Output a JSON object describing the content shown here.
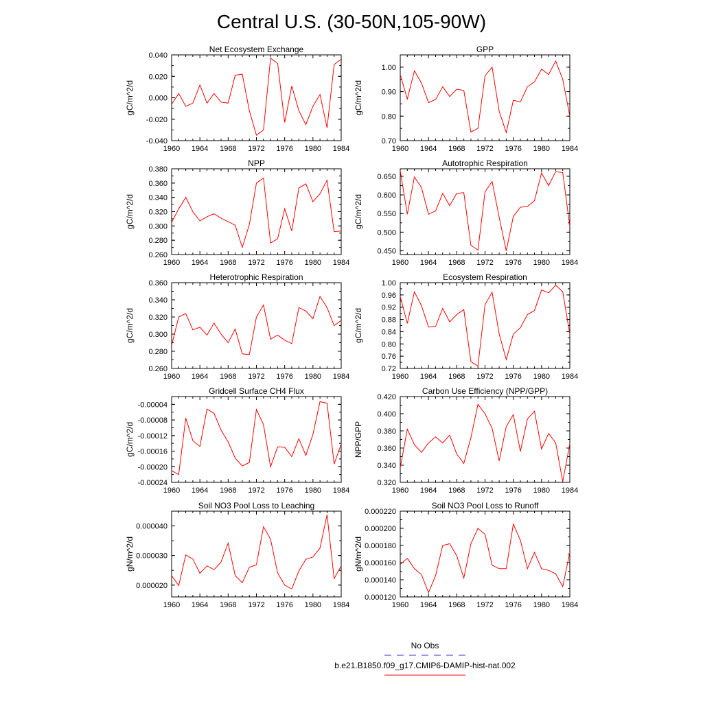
{
  "page_title": "Central U.S. (30-50N,105-90W)",
  "colors": {
    "model_line": "#ff0000",
    "obs_line": "#3333cc",
    "frame": "#000000"
  },
  "x_ticks": [
    "1960",
    "1964",
    "1968",
    "1972",
    "1976",
    "1980",
    "1984"
  ],
  "legend": {
    "obs_label": "No Obs",
    "model_label": "b.e21.B1850.f09_g17.CMIP6-DAMIP-hist-nat.002",
    "obs_style": "dashed blue",
    "model_style": "solid red"
  },
  "chart_data": [
    {
      "type": "line",
      "title": "Net Ecosystem Exchange",
      "ylabel": "gC/m^2/d",
      "xlim": [
        1960,
        1984
      ],
      "ylim": [
        -0.04,
        0.04
      ],
      "yticks": [
        -0.04,
        -0.02,
        0.0,
        0.02,
        0.04
      ],
      "ytick_labels": [
        "-0.040",
        "-0.020",
        "0.000",
        "0.020",
        "0.040"
      ],
      "series": [
        {
          "name": "b.e21.B1850.f09_g17.CMIP6-DAMIP-hist-nat.002",
          "x": [
            1960,
            1961,
            1962,
            1963,
            1964,
            1965,
            1966,
            1967,
            1968,
            1969,
            1970,
            1971,
            1972,
            1973,
            1974,
            1975,
            1976,
            1977,
            1978,
            1979,
            1980,
            1981,
            1982,
            1983,
            1984
          ],
          "y": [
            -0.006,
            0.004,
            -0.008,
            -0.005,
            0.012,
            -0.005,
            0.004,
            -0.004,
            -0.005,
            0.021,
            0.022,
            -0.012,
            -0.035,
            -0.03,
            0.037,
            0.032,
            -0.023,
            0.011,
            -0.012,
            -0.025,
            -0.008,
            0.003,
            -0.028,
            0.031,
            0.036
          ]
        }
      ]
    },
    {
      "type": "line",
      "title": "GPP",
      "ylabel": "gC/m^2/d",
      "xlim": [
        1960,
        1984
      ],
      "ylim": [
        0.7,
        1.05
      ],
      "yticks": [
        0.7,
        0.8,
        0.9,
        1.0
      ],
      "ytick_labels": [
        "0.70",
        "0.80",
        "0.90",
        "1.00"
      ],
      "series": [
        {
          "name": "b.e21.B1850.f09_g17.CMIP6-DAMIP-hist-nat.002",
          "x": [
            1960,
            1961,
            1962,
            1963,
            1964,
            1965,
            1966,
            1967,
            1968,
            1969,
            1970,
            1971,
            1972,
            1973,
            1974,
            1975,
            1976,
            1977,
            1978,
            1979,
            1980,
            1981,
            1982,
            1983,
            1984
          ],
          "y": [
            0.97,
            0.87,
            0.985,
            0.935,
            0.855,
            0.868,
            0.92,
            0.88,
            0.91,
            0.905,
            0.735,
            0.75,
            0.965,
            1.0,
            0.82,
            0.733,
            0.865,
            0.858,
            0.92,
            0.94,
            0.992,
            0.97,
            1.025,
            0.95,
            0.8
          ]
        }
      ]
    },
    {
      "type": "line",
      "title": "NPP",
      "ylabel": "gC/m^2/d",
      "xlim": [
        1960,
        1984
      ],
      "ylim": [
        0.26,
        0.38
      ],
      "yticks": [
        0.26,
        0.28,
        0.3,
        0.32,
        0.34,
        0.36,
        0.38
      ],
      "ytick_labels": [
        "0.260",
        "0.280",
        "0.300",
        "0.320",
        "0.340",
        "0.360",
        "0.380"
      ],
      "series": [
        {
          "name": "b.e21.B1850.f09_g17.CMIP6-DAMIP-hist-nat.002",
          "x": [
            1960,
            1961,
            1962,
            1963,
            1964,
            1965,
            1966,
            1967,
            1968,
            1969,
            1970,
            1971,
            1972,
            1973,
            1974,
            1975,
            1976,
            1977,
            1978,
            1979,
            1980,
            1981,
            1982,
            1983,
            1984
          ],
          "y": [
            0.305,
            0.324,
            0.34,
            0.32,
            0.307,
            0.313,
            0.317,
            0.311,
            0.306,
            0.301,
            0.27,
            0.302,
            0.36,
            0.367,
            0.276,
            0.282,
            0.324,
            0.293,
            0.353,
            0.359,
            0.334,
            0.345,
            0.364,
            0.292,
            0.293
          ]
        }
      ]
    },
    {
      "type": "line",
      "title": "Autotrophic Respiration",
      "ylabel": "gC/m^2/d",
      "xlim": [
        1960,
        1984
      ],
      "ylim": [
        0.44,
        0.67
      ],
      "yticks": [
        0.45,
        0.5,
        0.55,
        0.6,
        0.65
      ],
      "ytick_labels": [
        "0.450",
        "0.500",
        "0.550",
        "0.600",
        "0.650"
      ],
      "series": [
        {
          "name": "b.e21.B1850.f09_g17.CMIP6-DAMIP-hist-nat.002",
          "x": [
            1960,
            1961,
            1962,
            1963,
            1964,
            1965,
            1966,
            1967,
            1968,
            1969,
            1970,
            1971,
            1972,
            1973,
            1974,
            1975,
            1976,
            1977,
            1978,
            1979,
            1980,
            1981,
            1982,
            1983,
            1984
          ],
          "y": [
            0.665,
            0.548,
            0.648,
            0.62,
            0.548,
            0.557,
            0.604,
            0.571,
            0.604,
            0.606,
            0.465,
            0.452,
            0.608,
            0.636,
            0.54,
            0.45,
            0.542,
            0.567,
            0.569,
            0.584,
            0.659,
            0.625,
            0.662,
            0.66,
            0.515
          ]
        }
      ]
    },
    {
      "type": "line",
      "title": "Heterotrophic Respiration",
      "ylabel": "gC/m^2/d",
      "xlim": [
        1960,
        1984
      ],
      "ylim": [
        0.26,
        0.36
      ],
      "yticks": [
        0.26,
        0.28,
        0.3,
        0.32,
        0.34,
        0.36
      ],
      "ytick_labels": [
        "0.260",
        "0.280",
        "0.300",
        "0.320",
        "0.340",
        "0.360"
      ],
      "series": [
        {
          "name": "b.e21.B1850.f09_g17.CMIP6-DAMIP-hist-nat.002",
          "x": [
            1960,
            1961,
            1962,
            1963,
            1964,
            1965,
            1966,
            1967,
            1968,
            1969,
            1970,
            1971,
            1972,
            1973,
            1974,
            1975,
            1976,
            1977,
            1978,
            1979,
            1980,
            1981,
            1982,
            1983,
            1984
          ],
          "y": [
            0.287,
            0.32,
            0.324,
            0.305,
            0.308,
            0.299,
            0.313,
            0.3,
            0.29,
            0.306,
            0.277,
            0.276,
            0.32,
            0.334,
            0.294,
            0.299,
            0.293,
            0.289,
            0.331,
            0.327,
            0.318,
            0.344,
            0.331,
            0.31,
            0.316
          ]
        }
      ]
    },
    {
      "type": "line",
      "title": "Ecosystem Respiration",
      "ylabel": "gC/m^2/d",
      "xlim": [
        1960,
        1984
      ],
      "ylim": [
        0.72,
        1.0
      ],
      "yticks": [
        0.72,
        0.76,
        0.8,
        0.84,
        0.88,
        0.92,
        0.96,
        1.0
      ],
      "ytick_labels": [
        "0.72",
        "0.76",
        "0.80",
        "0.84",
        "0.88",
        "0.92",
        "0.96",
        "1.00"
      ],
      "series": [
        {
          "name": "b.e21.B1850.f09_g17.CMIP6-DAMIP-hist-nat.002",
          "x": [
            1960,
            1961,
            1962,
            1963,
            1964,
            1965,
            1966,
            1967,
            1968,
            1969,
            1970,
            1971,
            1972,
            1973,
            1974,
            1975,
            1976,
            1977,
            1978,
            1979,
            1980,
            1981,
            1982,
            1983,
            1984
          ],
          "y": [
            0.955,
            0.867,
            0.97,
            0.925,
            0.855,
            0.857,
            0.916,
            0.872,
            0.896,
            0.912,
            0.742,
            0.728,
            0.928,
            0.969,
            0.833,
            0.749,
            0.832,
            0.853,
            0.896,
            0.909,
            0.976,
            0.967,
            0.992,
            0.97,
            0.832
          ]
        }
      ]
    },
    {
      "type": "line",
      "title": "Gridcell Surface CH4 Flux",
      "ylabel": "gC/m^2/d",
      "xlim": [
        1960,
        1984
      ],
      "ylim": [
        -0.00024,
        -2e-05
      ],
      "yticks": [
        -0.00024,
        -0.0002,
        -0.00016,
        -0.00012,
        -8e-05,
        -4e-05
      ],
      "ytick_labels": [
        "-0.00024",
        "-0.00020",
        "-0.00016",
        "-0.00012",
        "-0.00008",
        "-0.00004"
      ],
      "series": [
        {
          "name": "b.e21.B1850.f09_g17.CMIP6-DAMIP-hist-nat.002",
          "x": [
            1960,
            1961,
            1962,
            1963,
            1964,
            1965,
            1966,
            1967,
            1968,
            1969,
            1970,
            1971,
            1972,
            1973,
            1974,
            1975,
            1976,
            1977,
            1978,
            1979,
            1980,
            1981,
            1982,
            1983,
            1984
          ],
          "y": [
            -0.00021,
            -0.00022,
            -7.5e-05,
            -0.000133,
            -0.000148,
            -5.2e-05,
            -6.3e-05,
            -0.000106,
            -0.000136,
            -0.000178,
            -0.000198,
            -0.000189,
            -5.3e-05,
            -9.2e-05,
            -0.0002,
            -0.000149,
            -0.00015,
            -0.000174,
            -0.000128,
            -0.000171,
            -0.000117,
            -3.3e-05,
            -3.7e-05,
            -0.000193,
            -0.000142
          ]
        }
      ]
    },
    {
      "type": "line",
      "title": "Carbon Use Efficiency (NPP/GPP)",
      "ylabel": "NPP/GPP",
      "xlim": [
        1960,
        1984
      ],
      "ylim": [
        0.32,
        0.42
      ],
      "yticks": [
        0.32,
        0.34,
        0.36,
        0.38,
        0.4,
        0.42
      ],
      "ytick_labels": [
        "0.320",
        "0.340",
        "0.360",
        "0.380",
        "0.400",
        "0.420"
      ],
      "series": [
        {
          "name": "b.e21.B1850.f09_g17.CMIP6-DAMIP-hist-nat.002",
          "x": [
            1960,
            1961,
            1962,
            1963,
            1964,
            1965,
            1966,
            1967,
            1968,
            1969,
            1970,
            1971,
            1972,
            1973,
            1974,
            1975,
            1976,
            1977,
            1978,
            1979,
            1980,
            1981,
            1982,
            1983,
            1984
          ],
          "y": [
            0.337,
            0.382,
            0.364,
            0.355,
            0.366,
            0.373,
            0.366,
            0.375,
            0.353,
            0.342,
            0.372,
            0.411,
            0.4,
            0.383,
            0.345,
            0.385,
            0.399,
            0.356,
            0.394,
            0.403,
            0.359,
            0.377,
            0.366,
            0.321,
            0.365
          ]
        }
      ]
    },
    {
      "type": "line",
      "title": "Soil NO3 Pool Loss to Leaching",
      "ylabel": "gN/m^2/d",
      "xlim": [
        1960,
        1984
      ],
      "ylim": [
        1.6e-05,
        4.5e-05
      ],
      "yticks": [
        2e-05,
        3e-05,
        4e-05
      ],
      "ytick_labels": [
        "0.000020",
        "0.000030",
        "0.000040"
      ],
      "series": [
        {
          "name": "b.e21.B1850.f09_g17.CMIP6-DAMIP-hist-nat.002",
          "x": [
            1960,
            1961,
            1962,
            1963,
            1964,
            1965,
            1966,
            1967,
            1968,
            1969,
            1970,
            1971,
            1972,
            1973,
            1974,
            1975,
            1976,
            1977,
            1978,
            1979,
            1980,
            1981,
            1982,
            1983,
            1984
          ],
          "y": [
            2.32e-05,
            1.98e-05,
            3.02e-05,
            2.88e-05,
            2.4e-05,
            2.65e-05,
            2.52e-05,
            2.78e-05,
            3.42e-05,
            2.32e-05,
            2.08e-05,
            2.6e-05,
            2.69e-05,
            3.97e-05,
            3.55e-05,
            2.41e-05,
            2e-05,
            1.87e-05,
            2.48e-05,
            2.87e-05,
            2.95e-05,
            3.25e-05,
            4.38e-05,
            2.22e-05,
            2.65e-05
          ]
        }
      ]
    },
    {
      "type": "line",
      "title": "Soil NO3 Pool Loss to Runoff",
      "ylabel": "gN/m^2/d",
      "xlim": [
        1960,
        1984
      ],
      "ylim": [
        0.00012,
        0.00022
      ],
      "yticks": [
        0.00012,
        0.00014,
        0.00016,
        0.00018,
        0.0002,
        0.00022
      ],
      "ytick_labels": [
        "0.000120",
        "0.000140",
        "0.000160",
        "0.000180",
        "0.000200",
        "0.000220"
      ],
      "series": [
        {
          "name": "b.e21.B1850.f09_g17.CMIP6-DAMIP-hist-nat.002",
          "x": [
            1960,
            1961,
            1962,
            1963,
            1964,
            1965,
            1966,
            1967,
            1968,
            1969,
            1970,
            1971,
            1972,
            1973,
            1974,
            1975,
            1976,
            1977,
            1978,
            1979,
            1980,
            1981,
            1982,
            1983,
            1984
          ],
          "y": [
            0.000158,
            0.000165,
            0.000153,
            0.000146,
            0.000125,
            0.000145,
            0.00018,
            0.000182,
            0.000168,
            0.000142,
            0.000182,
            0.0002,
            0.000193,
            0.000157,
            0.000153,
            0.000153,
            0.000205,
            0.000186,
            0.000153,
            0.000172,
            0.000153,
            0.000151,
            0.000147,
            0.000132,
            0.000172
          ]
        }
      ]
    }
  ]
}
